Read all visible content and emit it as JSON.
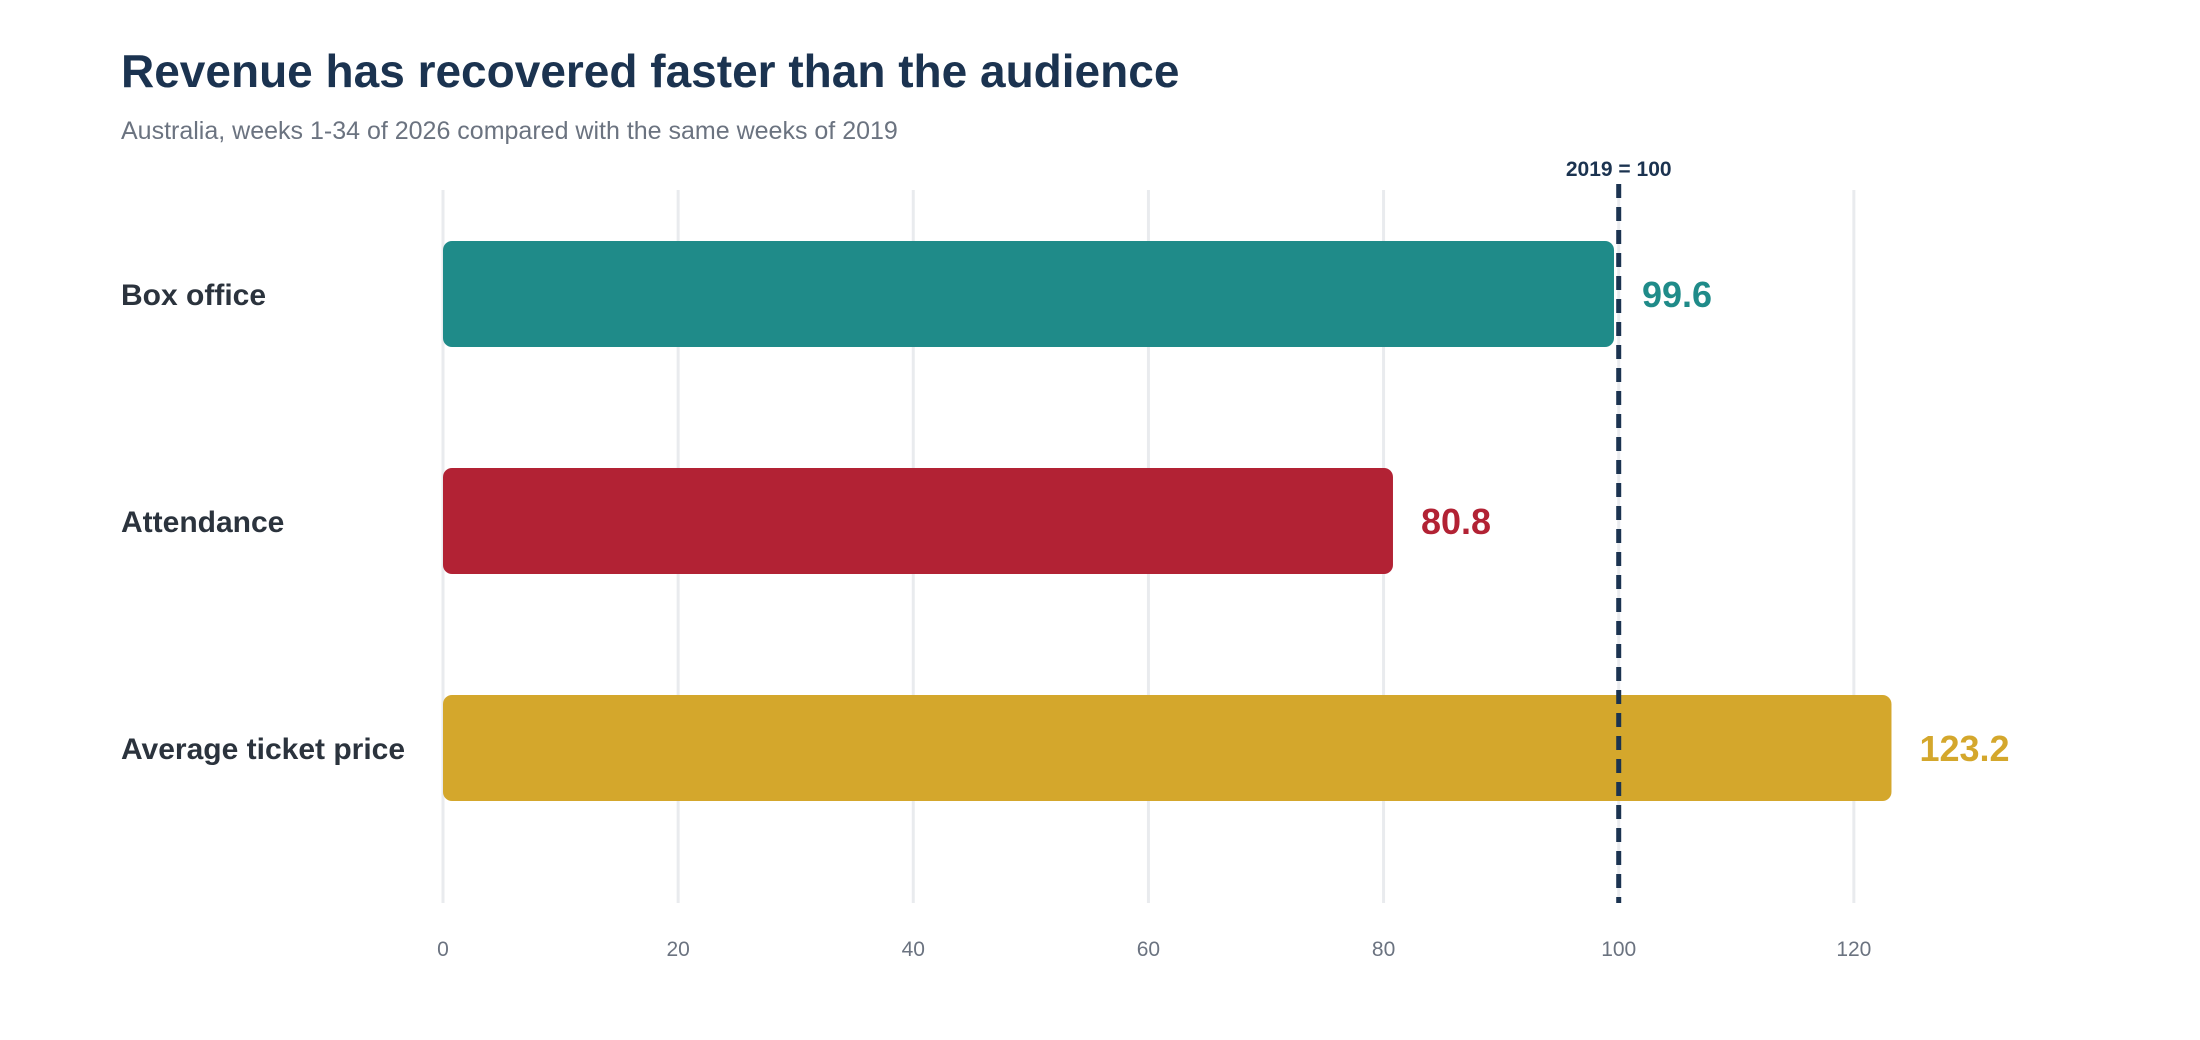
{
  "title": "Revenue has recovered faster than the audience",
  "subtitle": "Australia, weeks 1-34 of 2026 compared with the same weeks of 2019",
  "chart_data": {
    "type": "bar",
    "orientation": "horizontal",
    "categories": [
      "Box office",
      "Attendance",
      "Average ticket price"
    ],
    "values": [
      99.6,
      80.8,
      123.2
    ],
    "value_labels": [
      "99.6",
      "80.8",
      "123.2"
    ],
    "colors": [
      "#1f8b89",
      "#b22234",
      "#d4a72c"
    ],
    "xlim": [
      0,
      140
    ],
    "xticks": [
      0,
      20,
      40,
      60,
      80,
      100,
      120
    ],
    "reference_line": {
      "value": 100,
      "label": "2019 = 100",
      "color": "#1b3350",
      "style": "dashed"
    },
    "grid": "vertical",
    "gridline_color": "#e9ebee"
  }
}
